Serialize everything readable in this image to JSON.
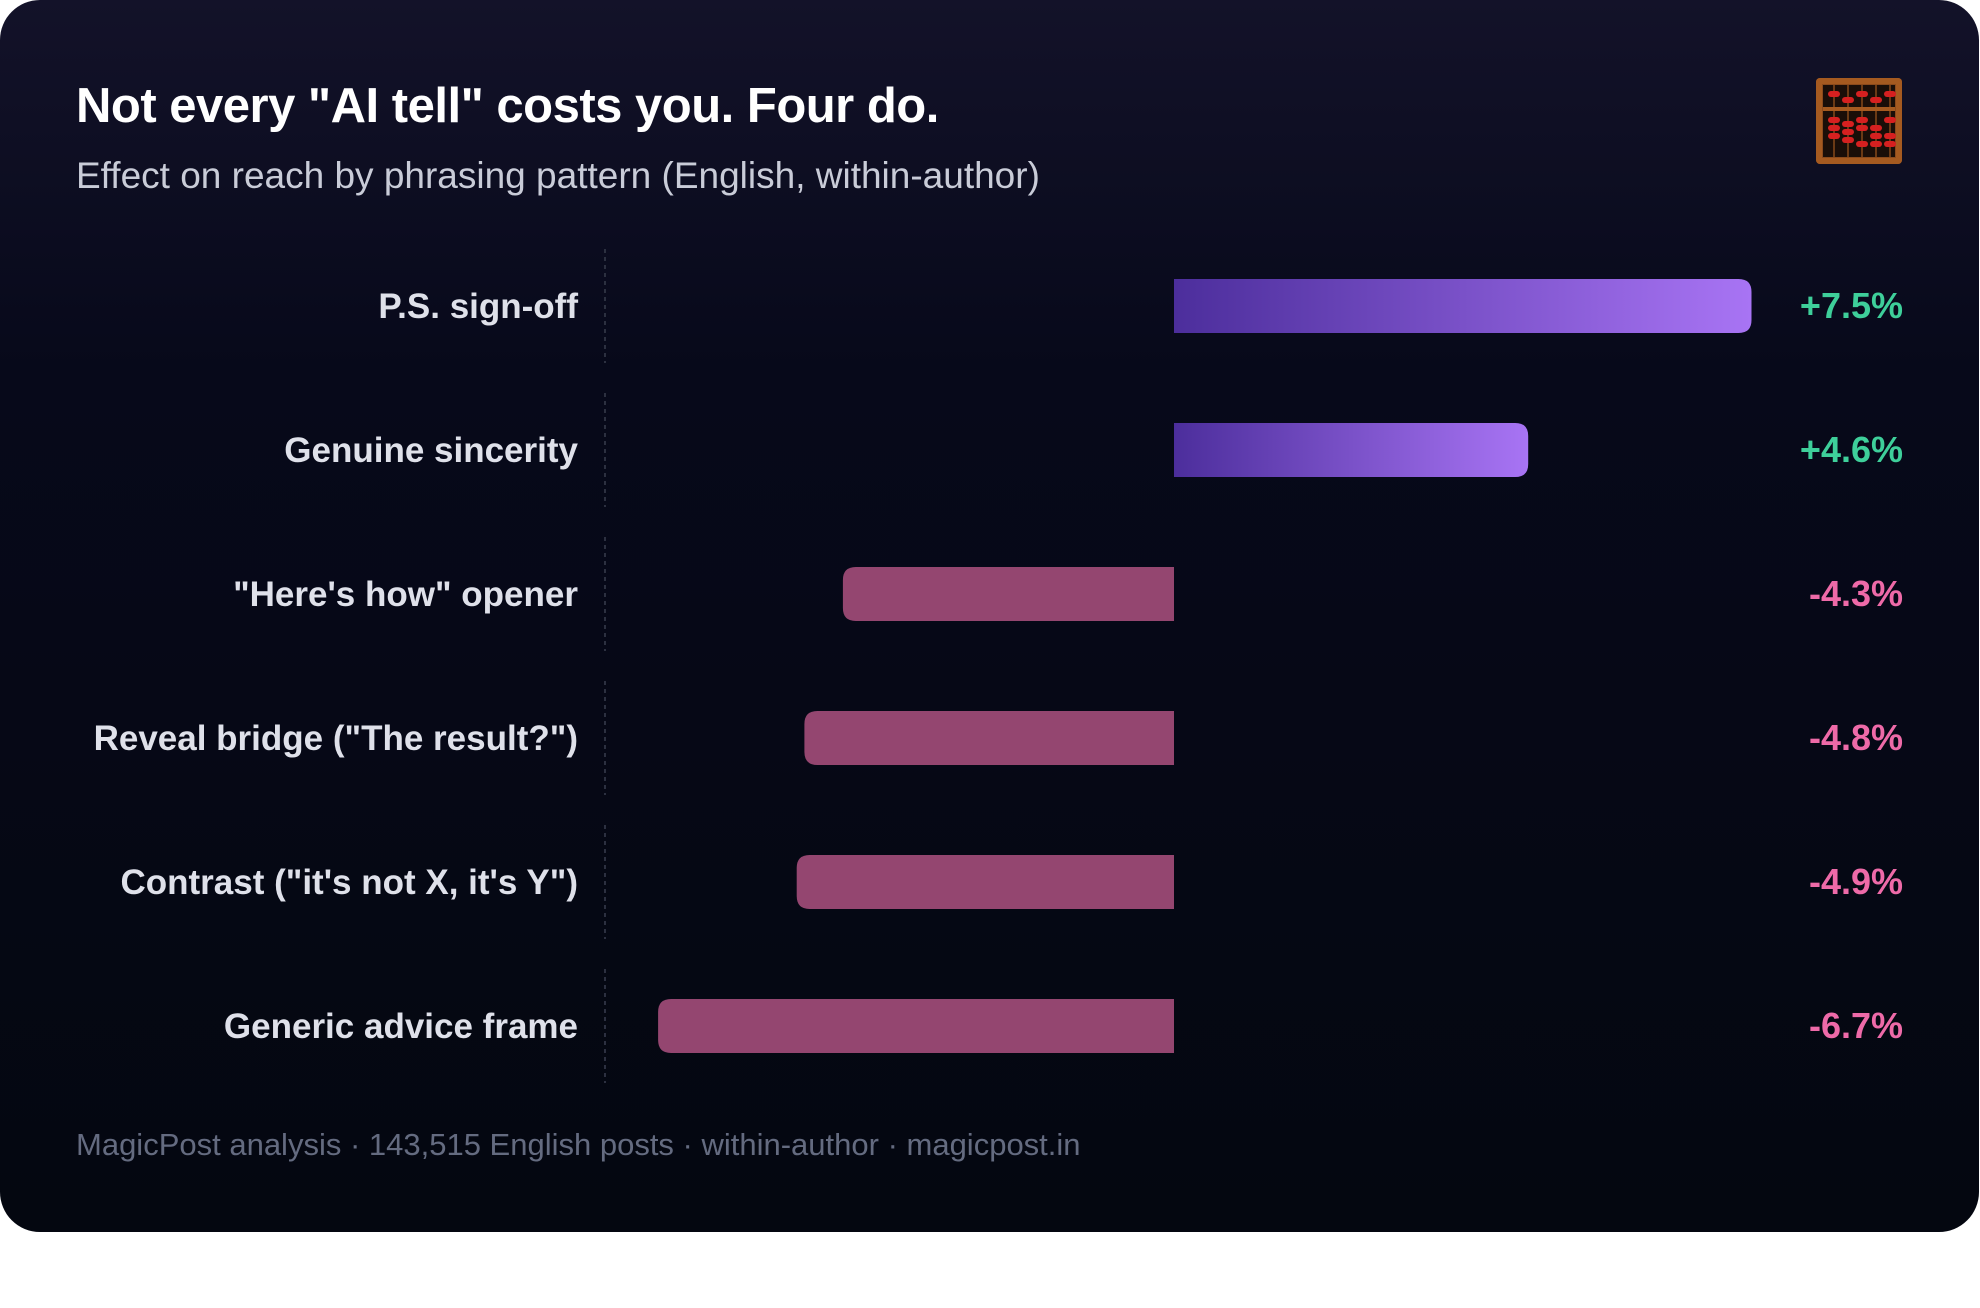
{
  "header": {
    "title": "Not every \"AI tell\" costs you. Four do.",
    "subtitle": "Effect on reach by phrasing pattern (English, within-author)"
  },
  "logo": {
    "icon": "abacus-icon"
  },
  "colors": {
    "positive_bar_start": "#4c2e9c",
    "positive_bar_end": "#a874f4",
    "negative_bar": "#944670",
    "positive_text": "#3ecf9a",
    "negative_text": "#ee6aa8",
    "label_text": "#dfe1ea"
  },
  "chart_data": {
    "type": "bar",
    "orientation": "horizontal",
    "title": "Not every \"AI tell\" costs you. Four do.",
    "subtitle": "Effect on reach by phrasing pattern (English, within-author)",
    "unit": "%",
    "categories": [
      "P.S. sign-off",
      "Genuine sincerity",
      "\"Here's how\" opener",
      "Reveal bridge (\"The result?\")",
      "Contrast (\"it's not X, it's Y\")",
      "Generic advice frame"
    ],
    "values": [
      7.5,
      4.6,
      -4.3,
      -4.8,
      -4.9,
      -6.7
    ],
    "value_labels": [
      "+7.5%",
      "+4.6%",
      "-4.3%",
      "-4.8%",
      "-4.9%",
      "-6.7%"
    ],
    "xlim": [
      -7,
      7.5
    ],
    "grid": false,
    "legend": "none"
  },
  "footer": {
    "source": "MagicPost analysis · 143,515 English posts · within-author · magicpost.in"
  }
}
